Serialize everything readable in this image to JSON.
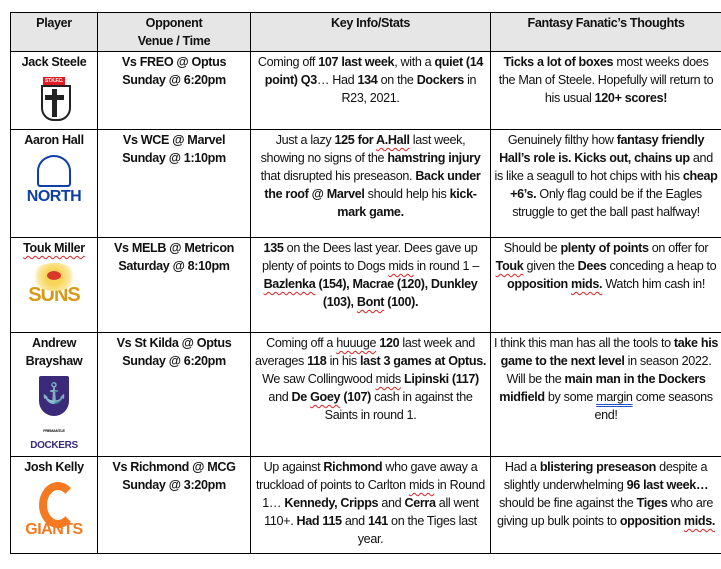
{
  "header": {
    "player": "Player",
    "opponent_line1": "Opponent",
    "opponent_line2": "Venue / Time",
    "stats": "Key Info/Stats",
    "thoughts": "Fantasy Fanatic’s Thoughts"
  },
  "rows": [
    {
      "player": "Jack Steele",
      "logo": {
        "type": "st-kilda",
        "text": "ST.K.F.C."
      },
      "opponent": "Vs FREO @ Optus",
      "time": "Sunday @ 6:20pm",
      "stats": [
        {
          "t": "Coming off "
        },
        {
          "t": "107 last week",
          "b": 1
        },
        {
          "t": ", with a "
        },
        {
          "t": "quiet (14 point) Q3",
          "b": 1
        },
        {
          "t": "… Had "
        },
        {
          "t": "134",
          "b": 1
        },
        {
          "t": " on the "
        },
        {
          "t": "Dockers",
          "b": 1
        },
        {
          "t": " in R23, 2021."
        }
      ],
      "thoughts": [
        {
          "t": "Ticks a lot of boxes",
          "b": 1
        },
        {
          "t": " most weeks does the Man of Steele. Hopefully will return to his usual "
        },
        {
          "t": "120+ scores!",
          "b": 1
        }
      ]
    },
    {
      "player": "Aaron Hall",
      "logo": {
        "type": "north",
        "text": "NORTH"
      },
      "opponent": "Vs WCE @ Marvel",
      "time": "Sunday @ 1:10pm",
      "stats": [
        {
          "t": "Just a lazy "
        },
        {
          "t": "125 for ",
          "b": 1
        },
        {
          "t": "A.Hall",
          "b": 1,
          "u": "sp"
        },
        {
          "t": " last week, showing no signs of the "
        },
        {
          "t": "hamstring injury",
          "b": 1
        },
        {
          "t": " that disrupted his preseason. "
        },
        {
          "t": "Back under the roof @ Marvel",
          "b": 1
        },
        {
          "t": " should help his "
        },
        {
          "t": "kick-mark game.",
          "b": 1
        }
      ],
      "thoughts": [
        {
          "t": "Genuinely filthy how "
        },
        {
          "t": "fantasy friendly Hall’s role is. Kicks out, chains up",
          "b": 1
        },
        {
          "t": " and is like a seagull to hot chips with his "
        },
        {
          "t": "cheap +6’s.",
          "b": 1
        },
        {
          "t": " Only flag could be if the Eagles struggle to get the ball past halfway!"
        }
      ]
    },
    {
      "player": "Touk Miller",
      "player_spell": true,
      "logo": {
        "type": "suns",
        "text": "SUNS"
      },
      "opponent": "Vs MELB @ Metricon",
      "time": "Saturday @ 8:10pm",
      "stats": [
        {
          "t": "135",
          "b": 1
        },
        {
          "t": " on the Dees last year. Dees gave up plenty of points to Dogs "
        },
        {
          "t": "mids",
          "u": "sp"
        },
        {
          "t": " in round 1 – "
        },
        {
          "t": "Bazlenka",
          "b": 1,
          "u": "sp"
        },
        {
          "t": " (154), Macrae (120), Dunkley (103), ",
          "b": 1
        },
        {
          "t": "Bont",
          "b": 1,
          "u": "sp"
        },
        {
          "t": " (100).",
          "b": 1
        }
      ],
      "thoughts": [
        {
          "t": "Should be "
        },
        {
          "t": "plenty of points",
          "b": 1
        },
        {
          "t": " on offer for "
        },
        {
          "t": "Touk",
          "b": 1,
          "u": "sp"
        },
        {
          "t": " given the "
        },
        {
          "t": "Dees",
          "b": 1
        },
        {
          "t": " conceding a heap to "
        },
        {
          "t": "opposition ",
          "b": 1
        },
        {
          "t": "mids.",
          "b": 1,
          "u": "sp"
        },
        {
          "t": " Watch him cash in!"
        }
      ]
    },
    {
      "player": "Andrew Brayshaw",
      "player_spell_last": true,
      "logo": {
        "type": "dockers",
        "text": "DOCKERS",
        "small": "FREMANTLE"
      },
      "opponent": "Vs St Kilda @ Optus",
      "time": "Sunday @ 6:20pm",
      "stats": [
        {
          "t": "Coming off a "
        },
        {
          "t": "huuuge",
          "u": "sp"
        },
        {
          "t": " "
        },
        {
          "t": "120",
          "b": 1
        },
        {
          "t": " last week and averages "
        },
        {
          "t": "118",
          "b": 1
        },
        {
          "t": " in his "
        },
        {
          "t": "last 3 games at Optus.",
          "b": 1
        },
        {
          "t": " We saw Collingwood "
        },
        {
          "t": "mids",
          "u": "sp"
        },
        {
          "t": " "
        },
        {
          "t": "Lipinski (117)",
          "b": 1
        },
        {
          "t": " and "
        },
        {
          "t": "De ",
          "b": 1
        },
        {
          "t": "Goey",
          "b": 1,
          "u": "sp"
        },
        {
          "t": " (107)",
          "b": 1
        },
        {
          "t": " cash in against the Saints in round 1."
        }
      ],
      "thoughts": [
        {
          "t": "I think this man has all the tools to "
        },
        {
          "t": "take his game to the next level",
          "b": 1
        },
        {
          "t": " in season 2022. Will be the "
        },
        {
          "t": "main man in the Dockers midfield",
          "b": 1
        },
        {
          "t": " by some "
        },
        {
          "t": "margin",
          "u": "gr"
        },
        {
          "t": " come seasons end!"
        }
      ]
    },
    {
      "player": "Josh Kelly",
      "logo": {
        "type": "giants",
        "text": "GIANTS"
      },
      "opponent": "Vs Richmond @ MCG",
      "time": "Sunday @ 3:20pm",
      "stats": [
        {
          "t": "Up against "
        },
        {
          "t": "Richmond",
          "b": 1
        },
        {
          "t": " who gave away a truckload of points to Carlton "
        },
        {
          "t": "mids",
          "u": "sp"
        },
        {
          "t": " in Round 1… "
        },
        {
          "t": "Kennedy, Cripps",
          "b": 1
        },
        {
          "t": " and "
        },
        {
          "t": "Cerra",
          "b": 1
        },
        {
          "t": " all went 110+. "
        },
        {
          "t": "Had 115",
          "b": 1
        },
        {
          "t": " and "
        },
        {
          "t": "141",
          "b": 1
        },
        {
          "t": " on the Tiges last year."
        }
      ],
      "thoughts": [
        {
          "t": "Had a "
        },
        {
          "t": "blistering preseason",
          "b": 1
        },
        {
          "t": " despite a slightly underwhelming "
        },
        {
          "t": "96 last week…",
          "b": 1
        },
        {
          "t": " should be fine against the "
        },
        {
          "t": "Tiges",
          "b": 1
        },
        {
          "t": " who are giving up bulk points to "
        },
        {
          "t": "opposition ",
          "b": 1
        },
        {
          "t": "mids.",
          "b": 1,
          "u": "sp"
        }
      ]
    }
  ]
}
